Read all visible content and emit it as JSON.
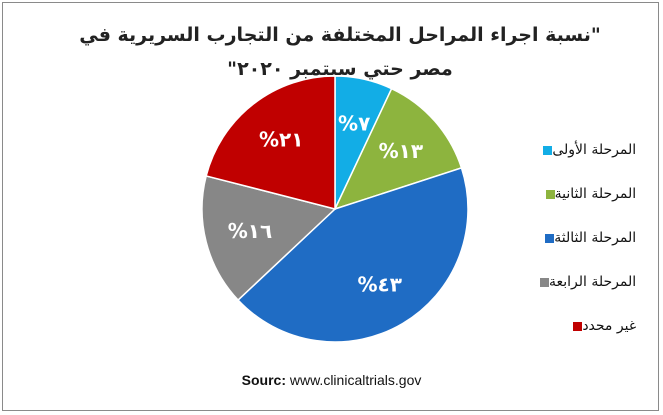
{
  "chart_data": {
    "type": "pie",
    "title": "\"نسبة اجراء المراحل المختلفة من التجارب السريرية في مصر حتي سبتمبر ٢٠٢٠\"",
    "categories": [
      "المرحلة الأولى",
      "المرحلة الثانية",
      "المرحلة الثالثة",
      "المرحلة الرابعة",
      "غير محدد"
    ],
    "values": [
      7,
      13,
      43,
      16,
      21
    ],
    "data_labels": [
      "%٧",
      "%١٣",
      "%٤٣",
      "%١٦",
      "%٢١"
    ],
    "colors": [
      "#12ADE6",
      "#8DB43E",
      "#1F6CC4",
      "#878787",
      "#C00000"
    ],
    "legend": "right",
    "start_angle": "12 o'clock",
    "direction": "clockwise"
  },
  "source": {
    "label": "Sourc:",
    "text": "www.clinicaltrials.gov"
  }
}
